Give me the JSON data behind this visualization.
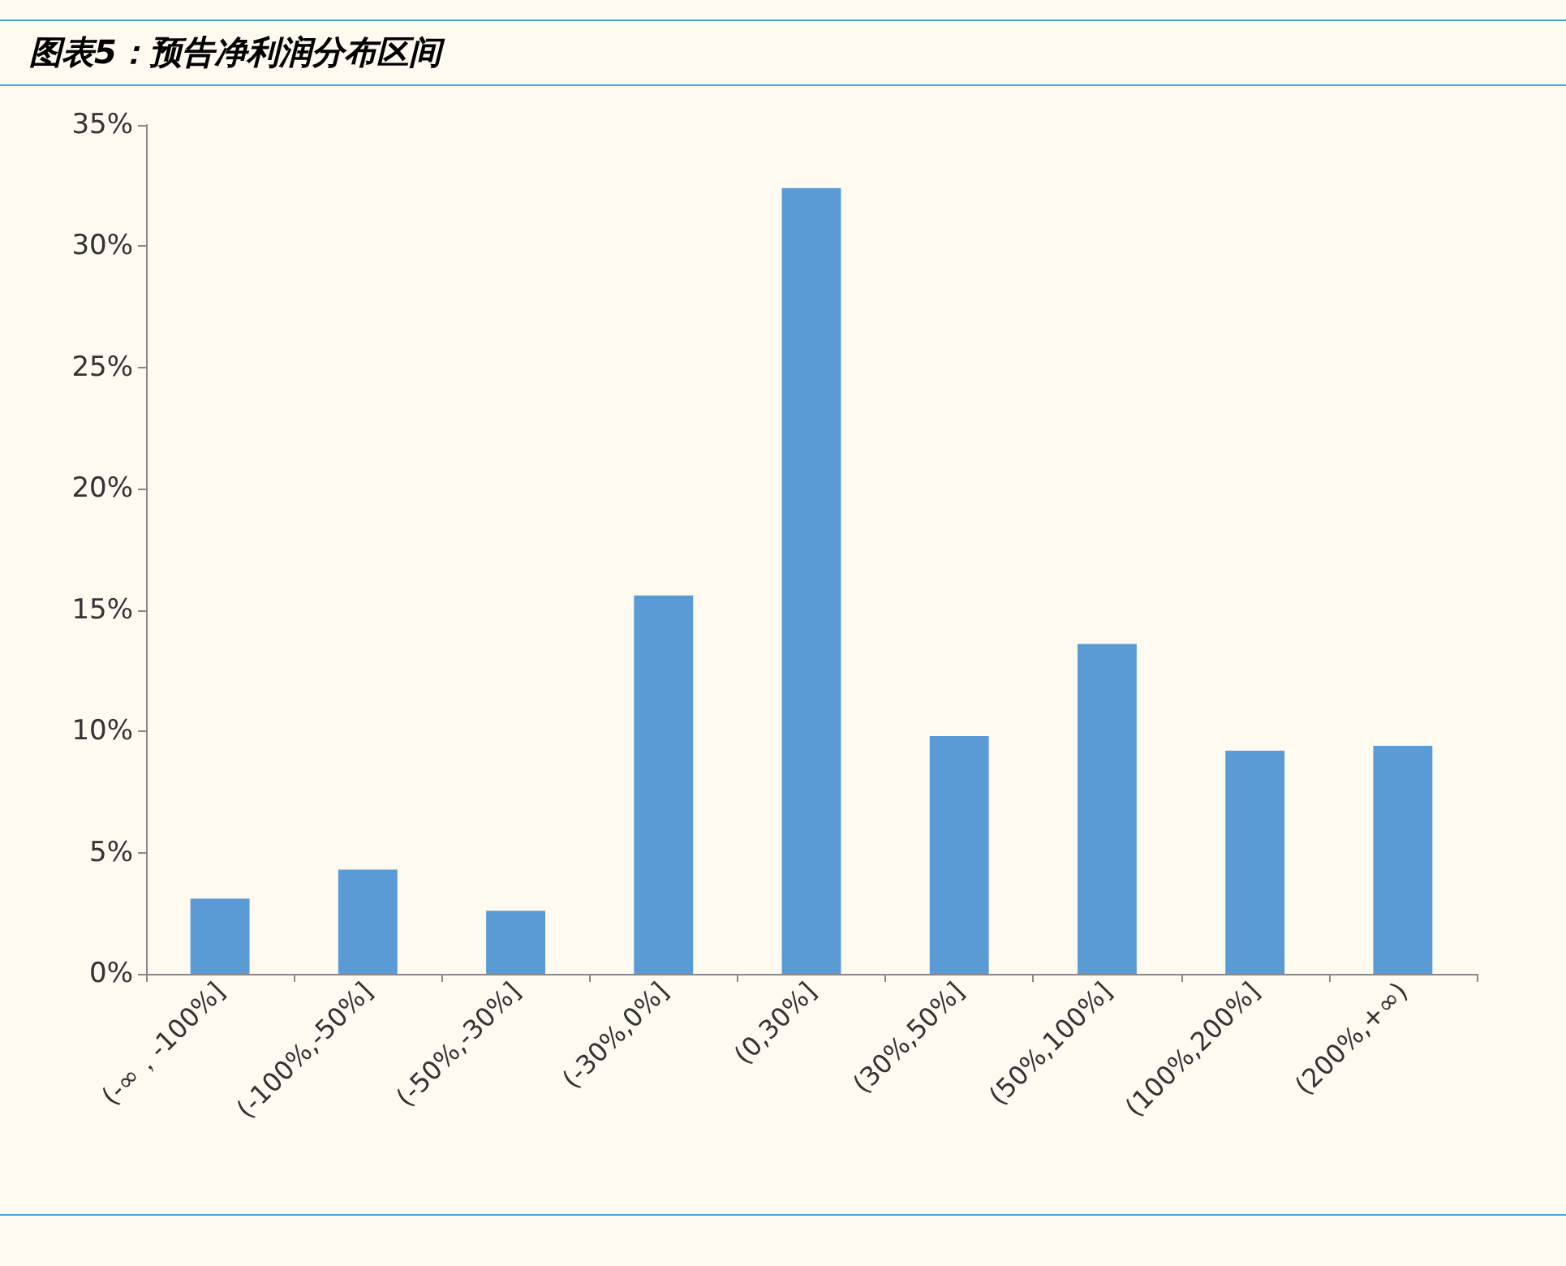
{
  "chart_data": {
    "type": "bar",
    "title": "图表5：预告净利润分布区间",
    "categories": [
      "(-∞，-100%]",
      "(-100%,-50%]",
      "(-50%,-30%]",
      "(-30%,0%]",
      "(0,30%]",
      "(30%,50%]",
      "(50%,100%]",
      "(100%,200%]",
      "(200%,+∞)"
    ],
    "values": [
      3.1,
      4.3,
      2.6,
      15.6,
      32.4,
      9.8,
      13.6,
      9.2,
      9.4
    ],
    "color": "#5b9bd5",
    "ylim": [
      0,
      35
    ],
    "yticks": [
      {
        "value": 0,
        "label": "0%"
      },
      {
        "value": 5,
        "label": "5%"
      },
      {
        "value": 10,
        "label": "10%"
      },
      {
        "value": 15,
        "label": "15%"
      },
      {
        "value": 20,
        "label": "20%"
      },
      {
        "value": 25,
        "label": "25%"
      },
      {
        "value": 30,
        "label": "30%"
      },
      {
        "value": 35,
        "label": "35%"
      }
    ],
    "grid": false
  }
}
